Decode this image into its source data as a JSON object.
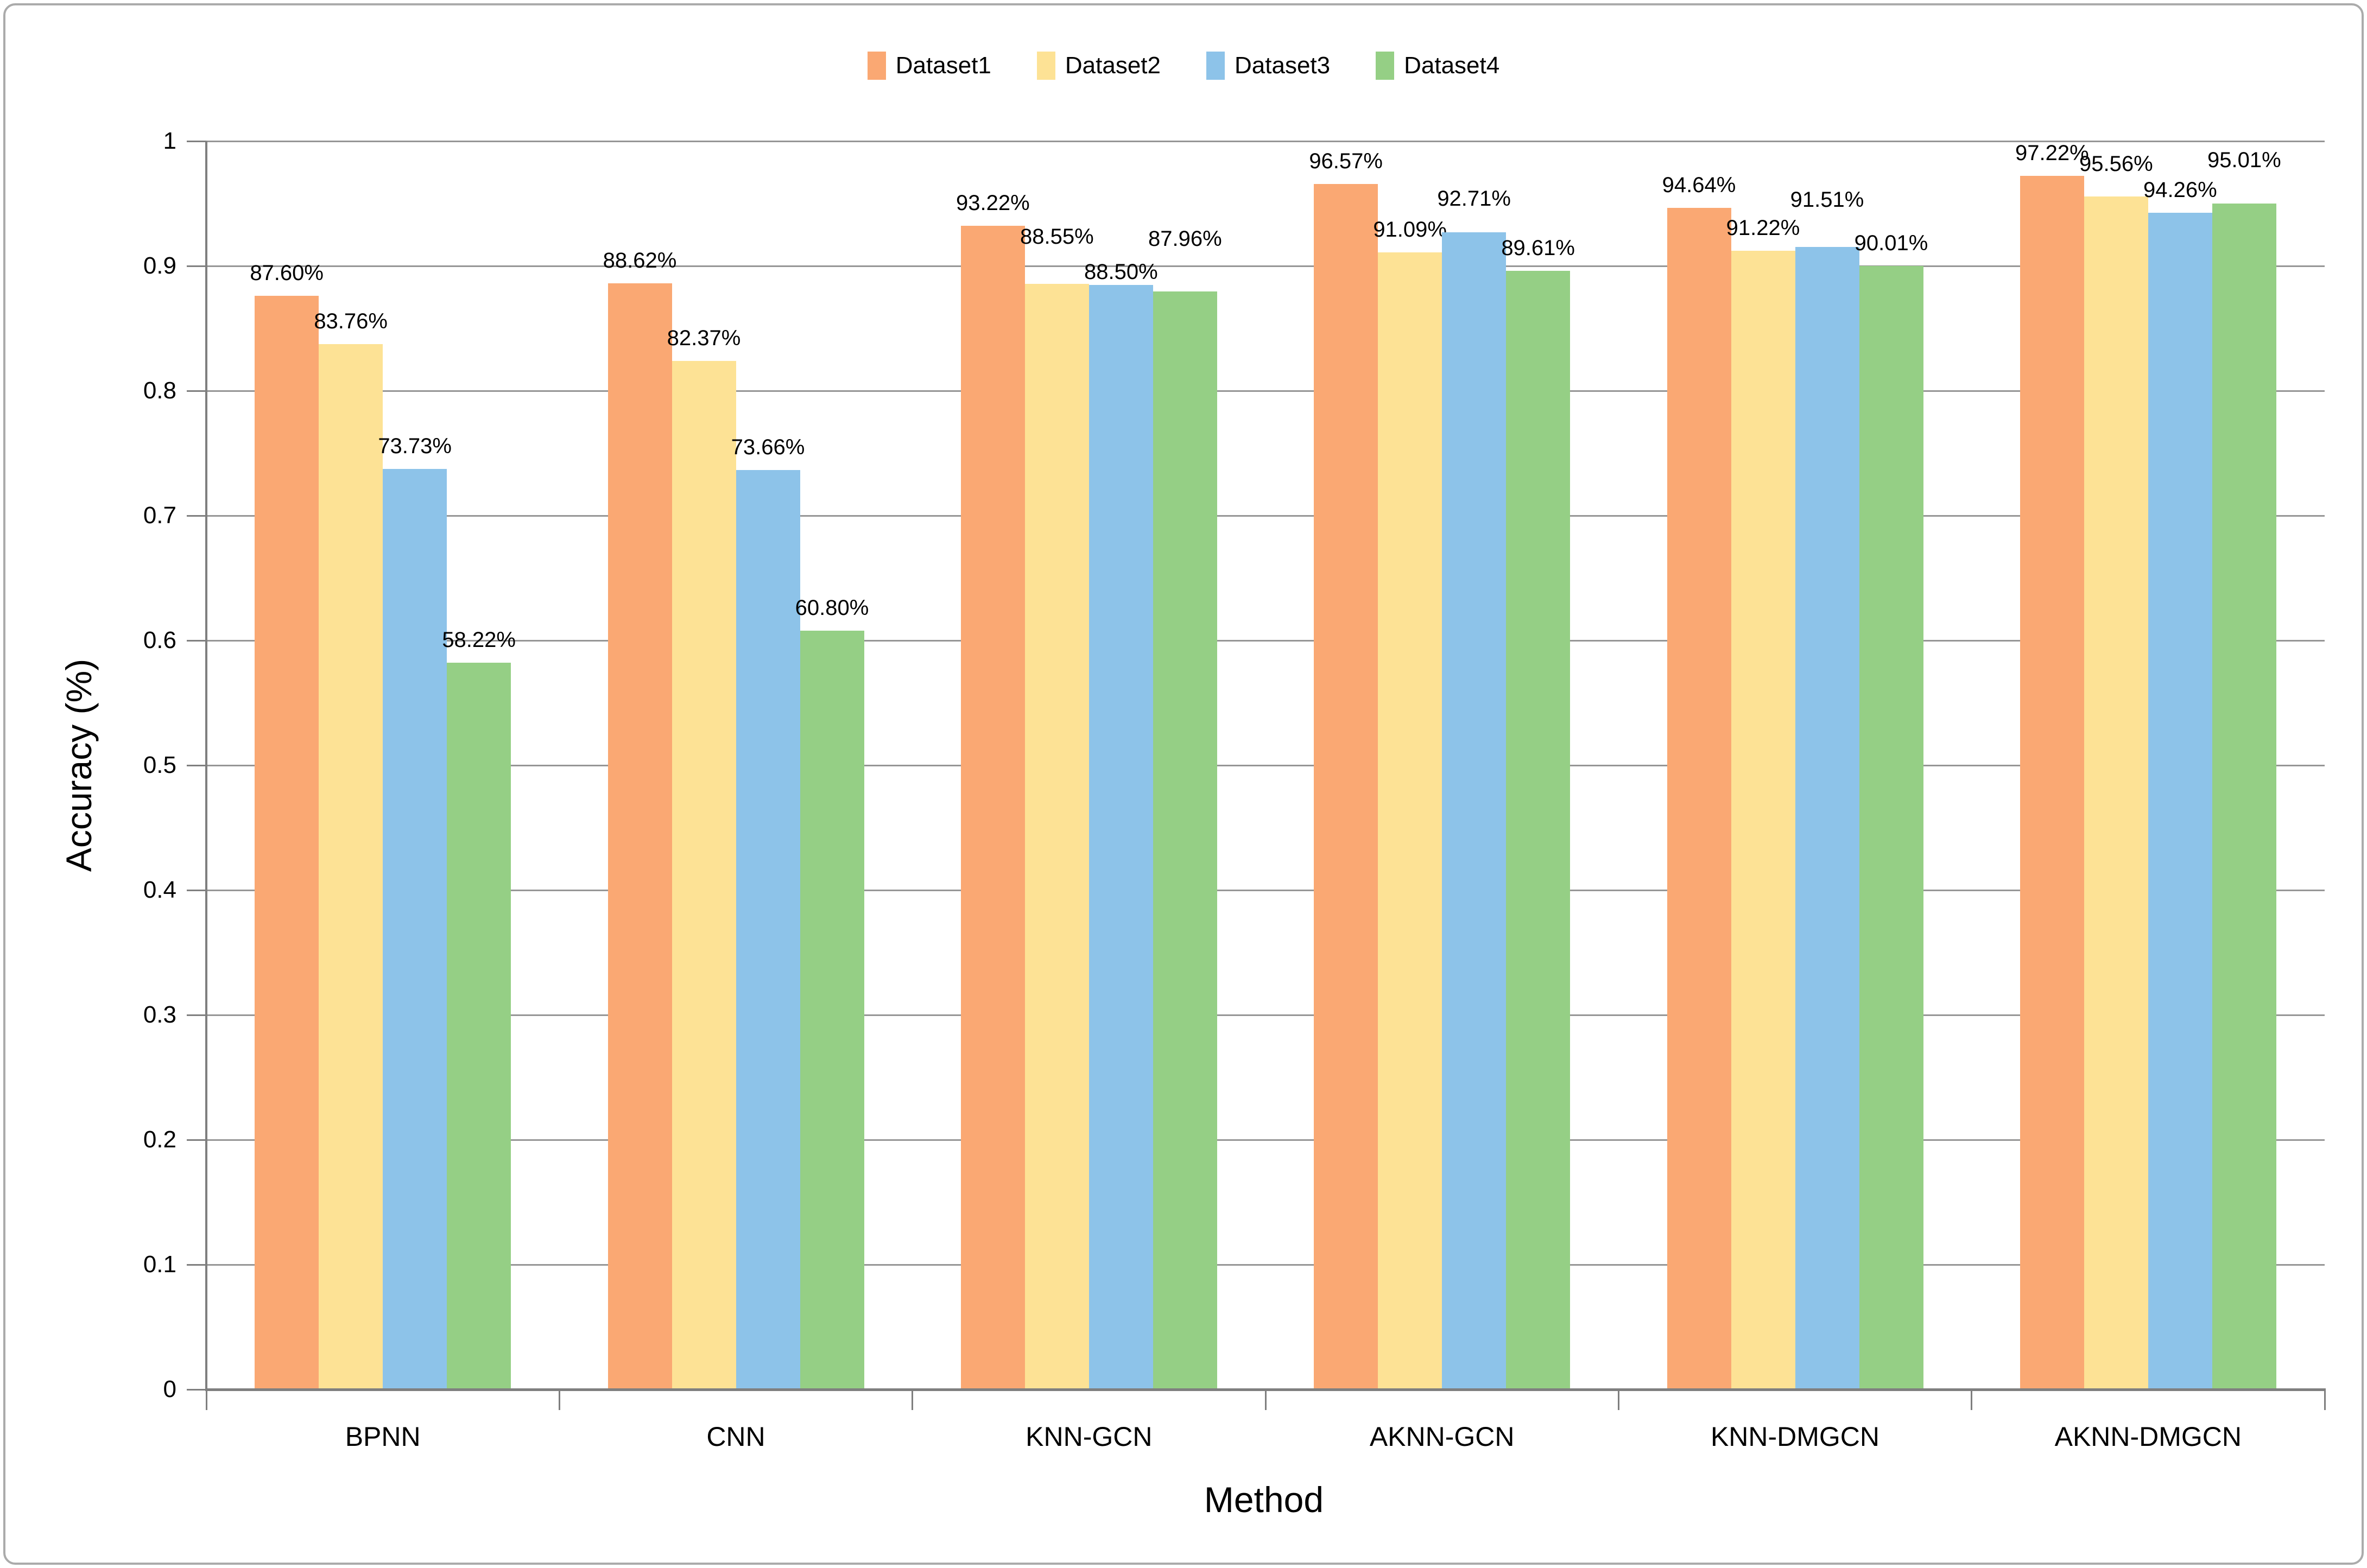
{
  "figure": {
    "background": "#FFFFFF",
    "border_color": "#ABABAB"
  },
  "chart_data": {
    "type": "bar",
    "title": "",
    "xlabel": "Method",
    "ylabel": "Accuracy (%)",
    "categories": [
      "BPNN",
      "CNN",
      "KNN-GCN",
      "AKNN-GCN",
      "KNN-DMGCN",
      "AKNN-DMGCN"
    ],
    "series": [
      {
        "name": "Dataset1",
        "color": "#FAA873",
        "values": [
          0.876,
          0.8862,
          0.9322,
          0.9657,
          0.9464,
          0.9722
        ],
        "labels": [
          "87.60%",
          "88.62%",
          "93.22%",
          "96.57%",
          "94.64%",
          "97.22%"
        ]
      },
      {
        "name": "Dataset2",
        "color": "#FDE295",
        "values": [
          0.8376,
          0.8237,
          0.8855,
          0.9109,
          0.9122,
          0.9556
        ],
        "labels": [
          "83.76%",
          "82.37%",
          "88.55%",
          "91.09%",
          "91.22%",
          "95.56%"
        ]
      },
      {
        "name": "Dataset3",
        "color": "#8DC3E9",
        "values": [
          0.7373,
          0.7366,
          0.885,
          0.9271,
          0.9151,
          0.9426
        ],
        "labels": [
          "73.73%",
          "73.66%",
          "88.50%",
          "92.71%",
          "91.51%",
          "94.26%"
        ]
      },
      {
        "name": "Dataset4",
        "color": "#95CF85",
        "values": [
          0.5822,
          0.608,
          0.8796,
          0.8961,
          0.9001,
          0.9501
        ],
        "labels": [
          "58.22%",
          "60.80%",
          "87.96%",
          "89.61%",
          "90.01%",
          "95.01%"
        ]
      }
    ],
    "y_ticks": [
      "1",
      "0.9",
      "0.8",
      "0.7",
      "0.6",
      "0.5",
      "0.4",
      "0.3",
      "0.2",
      "0.1",
      "0"
    ],
    "ylim": [
      0,
      1
    ],
    "grid": "horizontal",
    "gridline_color": "#969696",
    "axis_color": "#7F7F7F",
    "legend_position": "top"
  }
}
